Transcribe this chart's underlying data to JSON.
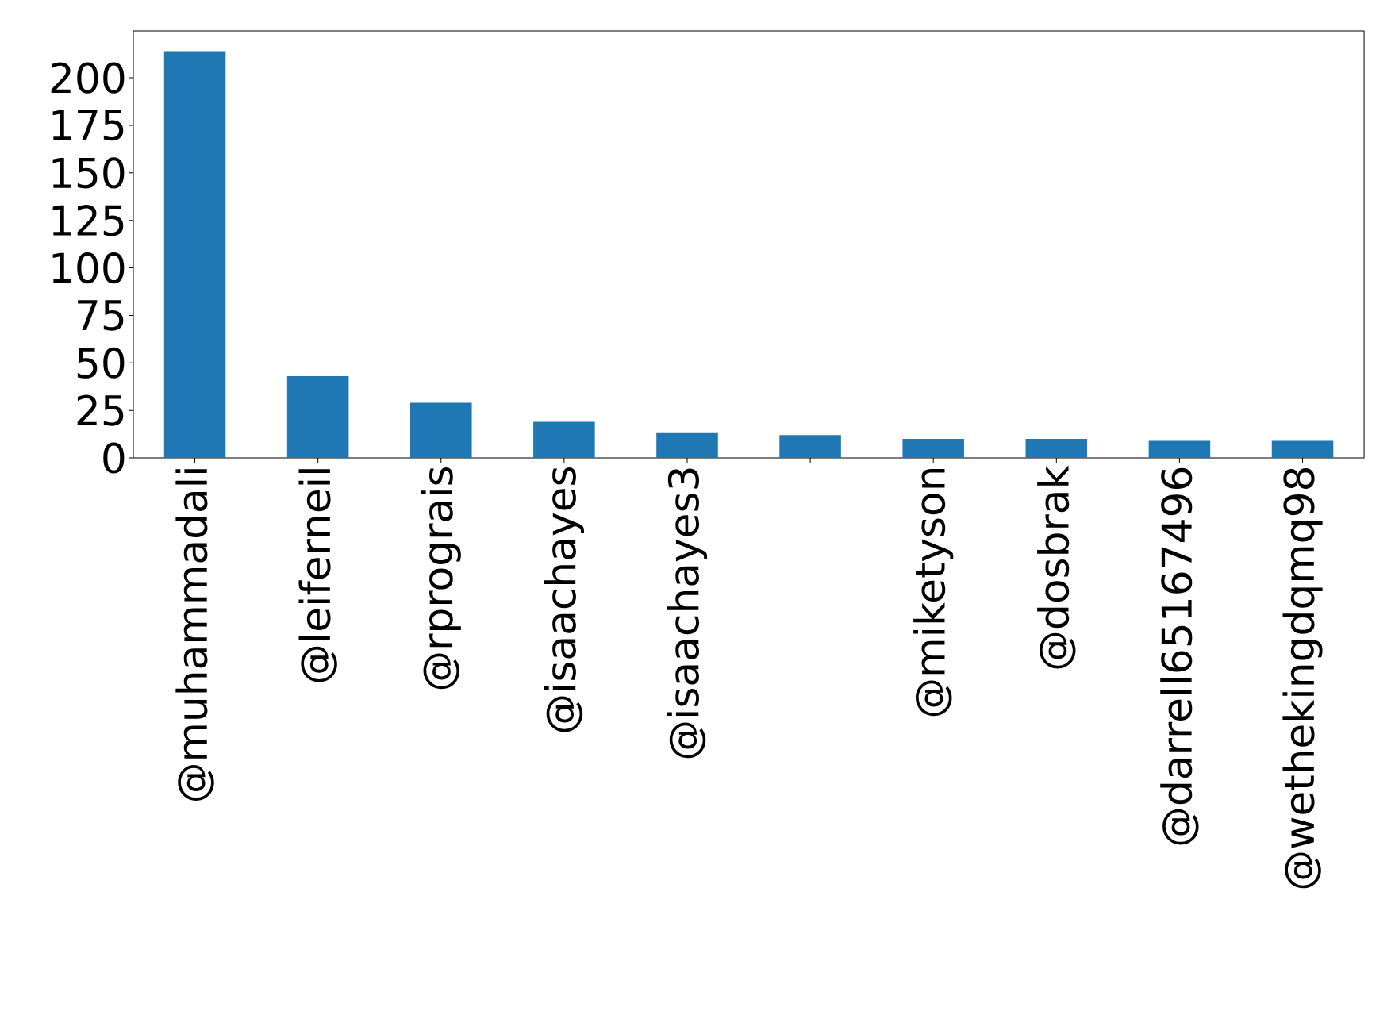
{
  "chart_data": {
    "type": "bar",
    "categories": [
      "@muhammadali",
      "@leiferneil",
      "@rprograis",
      "@isaachayes",
      "@isaachayes3",
      null,
      "@miketyson",
      "@dosbrak",
      "@darrell65167496",
      "@wethekingdqmq98"
    ],
    "values": [
      214,
      43,
      29,
      19,
      13,
      12,
      10,
      10,
      9,
      9
    ],
    "color": "#1f77b4",
    "ylim": [
      0,
      224.7
    ],
    "yticks": [
      0,
      25,
      50,
      75,
      100,
      125,
      150,
      175,
      200
    ],
    "grid": false
  }
}
